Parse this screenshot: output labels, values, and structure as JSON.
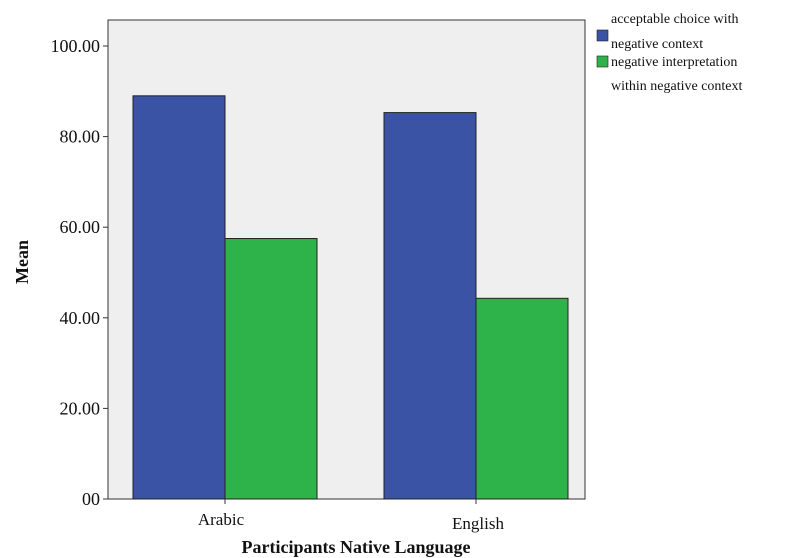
{
  "chart_data": {
    "type": "bar",
    "categories": [
      "Arabic",
      "English"
    ],
    "series": [
      {
        "name": "acceptable choice with negative context",
        "values": [
          89,
          85.3
        ]
      },
      {
        "name": "negative interpretation within negative context",
        "values": [
          57.5,
          44.3
        ]
      }
    ],
    "xlabel": "Participants Native Language",
    "ylabel": "Mean",
    "ylim": [
      0,
      100
    ],
    "yticks": [
      0,
      20,
      40,
      60,
      80,
      100
    ],
    "ytick_labels": [
      "00",
      "20.00",
      "40.00",
      "60.00",
      "80.00",
      "100.00"
    ],
    "grid": false,
    "legend_position": "top-right"
  },
  "colors": {
    "plot_background": "#efefef",
    "series": [
      "#3a53a4",
      "#2db34a"
    ]
  },
  "legend": {
    "series1_lines": [
      "acceptable choice with",
      "negative context"
    ],
    "series2_lines": [
      "negative interpretation",
      "within negative context"
    ]
  }
}
